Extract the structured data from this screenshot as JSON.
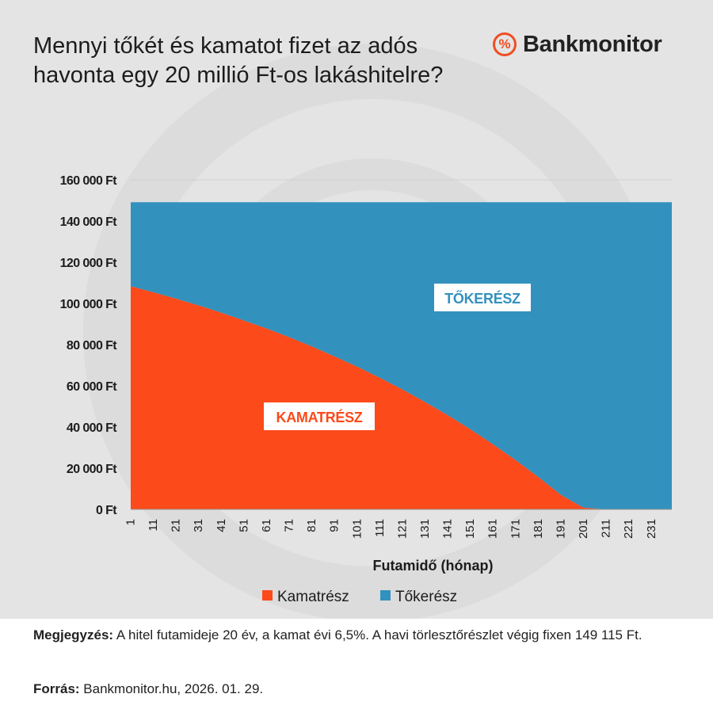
{
  "title": "Mennyi tőkét és kamatot fizet az adós havonta egy 20 millió Ft-os lakáshitelre?",
  "logo": {
    "icon": "%",
    "text": "Bankmonitor"
  },
  "chart_data": {
    "type": "area",
    "stacked": true,
    "xlabel": "Futamidő (hónap)",
    "ylabel": "",
    "ylim": [
      0,
      160000
    ],
    "y_ticks": [
      "0 Ft",
      "20 000 Ft",
      "40 000 Ft",
      "60 000 Ft",
      "80 000 Ft",
      "100 000 Ft",
      "120 000 Ft",
      "140 000 Ft",
      "160 000 Ft"
    ],
    "x_range": [
      1,
      240
    ],
    "x_ticks": [
      "1",
      "11",
      "21",
      "31",
      "41",
      "51",
      "61",
      "71",
      "81",
      "91",
      "101",
      "111",
      "121",
      "131",
      "141",
      "151",
      "161",
      "171",
      "181",
      "191",
      "201",
      "211",
      "221",
      "231"
    ],
    "x": [
      1,
      11,
      21,
      31,
      41,
      51,
      61,
      71,
      81,
      91,
      101,
      111,
      121,
      131,
      141,
      151,
      161,
      171,
      181,
      191,
      201,
      211,
      221,
      231,
      240
    ],
    "series": [
      {
        "name": "Kamatrész",
        "color": "#fc4a1a",
        "values": [
          108333,
          105400,
          102300,
          99000,
          95500,
          91700,
          87800,
          83600,
          79100,
          74300,
          69300,
          63900,
          58200,
          52100,
          45700,
          38900,
          31600,
          23900,
          15700,
          7000,
          800,
          0,
          0,
          0,
          0
        ]
      },
      {
        "name": "Tőkerész",
        "color": "#3391bd",
        "values": [
          40782,
          43715,
          46815,
          50115,
          53615,
          57415,
          61315,
          65515,
          70015,
          74815,
          79815,
          85215,
          90915,
          97015,
          103415,
          110215,
          117515,
          125215,
          133415,
          142115,
          148315,
          149115,
          149115,
          149115,
          149115
        ]
      }
    ],
    "series_labels": [
      "KAMATRÉSZ",
      "TŐKERÉSZ"
    ],
    "legend": "bottom",
    "grid": true
  },
  "footer": {
    "note_label": "Megjegyzés:",
    "note_text": " A hitel futamideje 20 év, a kamat évi 6,5%. A havi törlesztőrészlet végig fixen 149 115 Ft.",
    "source_label": "Forrás:",
    "source_text": " Bankmonitor.hu, 2026. 01. 29."
  },
  "colors": {
    "background": "#e4e4e4",
    "accent": "#f04e23",
    "kamat": "#fc4a1a",
    "toke": "#3391bd"
  }
}
